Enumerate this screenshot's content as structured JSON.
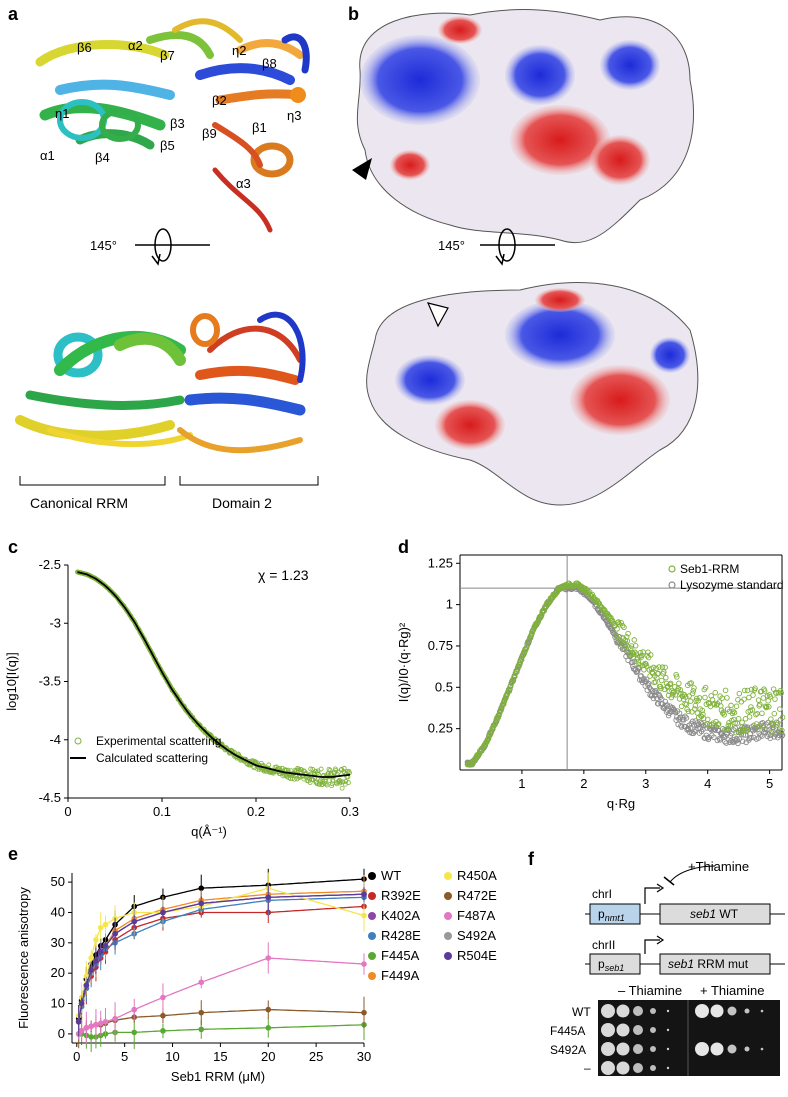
{
  "panels": {
    "a": {
      "label": "a",
      "rotation_label": "145°",
      "ss_labels": [
        "β6",
        "α2",
        "β7",
        "η2",
        "β8",
        "η1",
        "β2",
        "β3",
        "η3",
        "α1",
        "β4",
        "β5",
        "β9",
        "β1",
        "α3"
      ],
      "bottom_labels": [
        "Canonical RRM",
        "Domain 2"
      ]
    },
    "b": {
      "label": "b",
      "rotation_label": "145°"
    },
    "c": {
      "label": "c",
      "chi_label": "χ = 1.23",
      "legend": [
        "Experimental scattering",
        "Calculated scattering"
      ]
    },
    "d": {
      "label": "d",
      "legend": [
        "Seb1-RRM",
        "Lysozyme standard"
      ]
    },
    "e": {
      "label": "e",
      "legend": [
        "WT",
        "R392E",
        "K402A",
        "R428E",
        "F445A",
        "F449A",
        "R450A",
        "R472E",
        "F487A",
        "S492A",
        "R504E"
      ]
    },
    "f": {
      "label": "f",
      "thiamine_label": "+Thiamine",
      "chr1": "chrI",
      "chr2": "chrII",
      "promoter1_p": "p",
      "promoter1_sub": "nmt1",
      "promoter2_p": "p",
      "promoter2_sub": "seb1",
      "gene1_italic": "seb1",
      "gene1_rest": " WT",
      "gene2_italic": "seb1",
      "gene2_rest": " RRM mut",
      "minus_thiamine": "– Thiamine",
      "plus_thiamine": "+ Thiamine",
      "strains": [
        "WT",
        "F445A",
        "S492A",
        "–"
      ]
    }
  },
  "chart_data": [
    {
      "panel": "c",
      "type": "scatter",
      "title": "",
      "xlabel": "q(Å⁻¹)",
      "ylabel": "log10[I(q)]",
      "xlim": [
        0,
        0.3
      ],
      "ylim": [
        -4.5,
        -2.5
      ],
      "xticks": [
        "0",
        "0.1",
        "0.2",
        "0.3"
      ],
      "yticks": [
        "-2.5",
        "-3",
        "-3.5",
        "-4",
        "-4.5"
      ],
      "series": [
        {
          "name": "Experimental scattering",
          "style": "markers",
          "color": "#7fb23a",
          "x": [
            0.01,
            0.02,
            0.03,
            0.04,
            0.05,
            0.06,
            0.07,
            0.08,
            0.09,
            0.1,
            0.11,
            0.12,
            0.13,
            0.14,
            0.15,
            0.16,
            0.17,
            0.18,
            0.19,
            0.2,
            0.21,
            0.22,
            0.23,
            0.24,
            0.25,
            0.26,
            0.27,
            0.28,
            0.29,
            0.3
          ],
          "y": [
            -2.56,
            -2.58,
            -2.62,
            -2.68,
            -2.76,
            -2.86,
            -2.98,
            -3.12,
            -3.27,
            -3.42,
            -3.56,
            -3.68,
            -3.79,
            -3.88,
            -3.96,
            -4.03,
            -4.09,
            -4.14,
            -4.18,
            -4.22,
            -4.24,
            -4.26,
            -4.28,
            -4.29,
            -4.3,
            -4.31,
            -4.32,
            -4.32,
            -4.33,
            -4.33
          ]
        },
        {
          "name": "Calculated scattering",
          "style": "line",
          "color": "#000000",
          "x": [
            0.01,
            0.02,
            0.03,
            0.04,
            0.05,
            0.06,
            0.07,
            0.08,
            0.09,
            0.1,
            0.11,
            0.12,
            0.13,
            0.14,
            0.15,
            0.16,
            0.17,
            0.18,
            0.19,
            0.2,
            0.21,
            0.22,
            0.23,
            0.24,
            0.25,
            0.26,
            0.27,
            0.28,
            0.29,
            0.3
          ],
          "y": [
            -2.56,
            -2.58,
            -2.62,
            -2.68,
            -2.76,
            -2.86,
            -2.98,
            -3.12,
            -3.27,
            -3.42,
            -3.56,
            -3.68,
            -3.79,
            -3.88,
            -3.96,
            -4.03,
            -4.09,
            -4.14,
            -4.18,
            -4.22,
            -4.24,
            -4.26,
            -4.28,
            -4.29,
            -4.3,
            -4.31,
            -4.32,
            -4.32,
            -4.31,
            -4.3
          ]
        }
      ]
    },
    {
      "panel": "d",
      "type": "scatter",
      "title": "",
      "xlabel": "q·Rg",
      "ylabel": "I(q)/I0·(q·Rg)²",
      "xlim": [
        0,
        5.2
      ],
      "ylim": [
        0,
        1.3
      ],
      "xticks": [
        "1",
        "2",
        "3",
        "4",
        "5"
      ],
      "yticks": [
        "0.25",
        "0.5",
        "0.75",
        "1",
        "1.25"
      ],
      "reference_lines": {
        "x": 1.73,
        "y": 1.1
      },
      "series": [
        {
          "name": "Seb1-RRM",
          "color": "#7fb23a",
          "x": [
            0.2,
            0.4,
            0.6,
            0.8,
            1.0,
            1.2,
            1.4,
            1.6,
            1.73,
            1.9,
            2.1,
            2.3,
            2.5,
            2.7,
            2.9,
            3.1,
            3.3,
            3.5,
            3.7,
            3.9,
            4.1,
            4.3,
            4.5,
            4.7,
            4.9,
            5.1
          ],
          "y": [
            0.04,
            0.15,
            0.31,
            0.49,
            0.68,
            0.86,
            1.0,
            1.1,
            1.12,
            1.12,
            1.07,
            0.98,
            0.88,
            0.78,
            0.69,
            0.61,
            0.54,
            0.48,
            0.43,
            0.4,
            0.37,
            0.36,
            0.35,
            0.36,
            0.37,
            0.38
          ]
        },
        {
          "name": "Lysozyme standard",
          "color": "#8a8a8a",
          "x": [
            0.2,
            0.4,
            0.6,
            0.8,
            1.0,
            1.2,
            1.4,
            1.6,
            1.73,
            1.9,
            2.1,
            2.3,
            2.5,
            2.7,
            2.9,
            3.1,
            3.3,
            3.5,
            3.7,
            3.9,
            4.1,
            4.3,
            4.5,
            4.7,
            4.9,
            5.1
          ],
          "y": [
            0.04,
            0.15,
            0.31,
            0.49,
            0.68,
            0.86,
            1.0,
            1.1,
            1.1,
            1.1,
            1.04,
            0.94,
            0.82,
            0.7,
            0.58,
            0.47,
            0.39,
            0.32,
            0.27,
            0.24,
            0.22,
            0.21,
            0.21,
            0.22,
            0.24,
            0.25
          ]
        }
      ]
    },
    {
      "panel": "e",
      "type": "line",
      "title": "",
      "xlabel": "Seb1 RRM (μM)",
      "ylabel": "Fluorescence anisotropy",
      "xlim": [
        -0.5,
        30
      ],
      "ylim": [
        -3,
        53
      ],
      "xticks": [
        "0",
        "5",
        "10",
        "15",
        "20",
        "25",
        "30"
      ],
      "yticks": [
        "0",
        "10",
        "20",
        "30",
        "40",
        "50"
      ],
      "x": [
        0.2,
        0.5,
        1,
        1.5,
        2,
        2.5,
        3,
        4,
        6,
        9,
        13,
        20,
        30
      ],
      "series": [
        {
          "name": "WT",
          "color": "#000000",
          "values": [
            5,
            11,
            18,
            23,
            26,
            29,
            31,
            36,
            42,
            45,
            48,
            49,
            51
          ]
        },
        {
          "name": "R392E",
          "color": "#c62828",
          "values": [
            4,
            9,
            15,
            19,
            22,
            25,
            27,
            31,
            35,
            38,
            40,
            40,
            42
          ]
        },
        {
          "name": "K402A",
          "color": "#8e44ad",
          "values": [
            4,
            10,
            16,
            21,
            24,
            27,
            29,
            33,
            37,
            40,
            43,
            45,
            46
          ]
        },
        {
          "name": "R428E",
          "color": "#3f7fbf",
          "values": [
            4,
            9,
            15,
            20,
            23,
            26,
            28,
            30,
            33,
            37,
            41,
            44,
            45
          ]
        },
        {
          "name": "F445A",
          "color": "#5aa832",
          "values": [
            0,
            0,
            -0.5,
            -1,
            -1,
            -0.5,
            0,
            0.5,
            0.5,
            1,
            1.5,
            2,
            3
          ]
        },
        {
          "name": "F449A",
          "color": "#f08a24",
          "values": [
            4,
            10,
            16,
            21,
            24,
            27,
            29,
            34,
            38,
            41,
            44,
            46,
            47
          ]
        },
        {
          "name": "R450A",
          "color": "#f5e64b",
          "values": [
            6,
            12,
            19,
            25,
            31,
            35,
            36,
            38,
            40,
            40,
            42,
            48,
            39
          ]
        },
        {
          "name": "R472E",
          "color": "#8b5a2b",
          "values": [
            0,
            1,
            2,
            2.5,
            3,
            3,
            3.5,
            4.5,
            5.5,
            6,
            7,
            8,
            7
          ]
        },
        {
          "name": "F487A",
          "color": "#e377c2",
          "values": [
            0,
            1,
            2,
            2.5,
            3,
            3.5,
            4,
            5,
            8,
            12,
            17,
            25,
            23
          ]
        },
        {
          "name": "S492A",
          "color": "#999999",
          "values": [
            4,
            10,
            16,
            20,
            24,
            27,
            29,
            33,
            37,
            40,
            43,
            45,
            46
          ]
        },
        {
          "name": "R504E",
          "color": "#5b3a99",
          "values": [
            4,
            10,
            16,
            21,
            24,
            27,
            29,
            33,
            37,
            40,
            43,
            45,
            46
          ]
        }
      ]
    }
  ]
}
